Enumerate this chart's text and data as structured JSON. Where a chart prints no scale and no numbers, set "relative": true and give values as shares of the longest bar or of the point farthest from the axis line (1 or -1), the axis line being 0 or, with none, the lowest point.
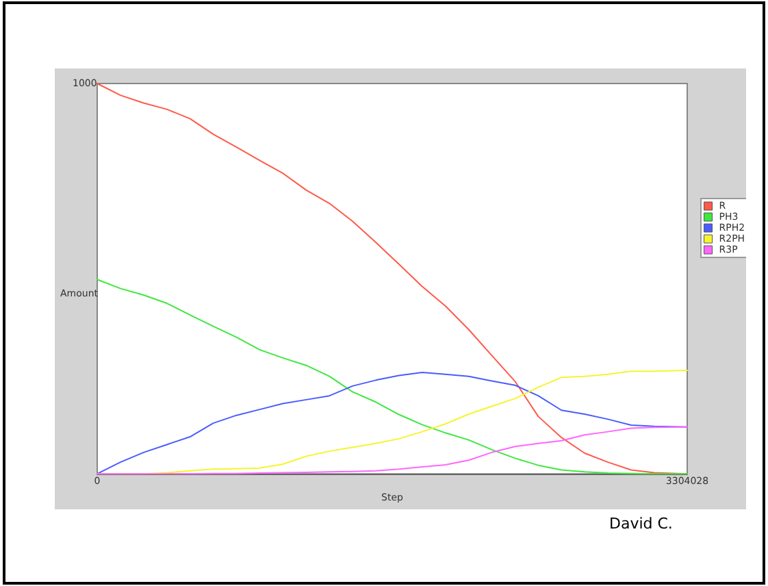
{
  "chart_data": {
    "type": "line",
    "x": [
      0,
      130000,
      260000,
      390000,
      520000,
      650000,
      780000,
      910000,
      1040000,
      1170000,
      1300000,
      1430000,
      1560000,
      1690000,
      1820000,
      1950000,
      2080000,
      2210000,
      2340000,
      2470000,
      2600000,
      2730000,
      2860000,
      2990000,
      3120000,
      3304028
    ],
    "series": [
      {
        "name": "R",
        "color": "#ff5a4a",
        "values": [
          1,
          0.97,
          0.95,
          0.934,
          0.91,
          0.87,
          0.837,
          0.803,
          0.77,
          0.727,
          0.693,
          0.647,
          0.593,
          0.537,
          0.48,
          0.43,
          0.37,
          0.303,
          0.237,
          0.147,
          0.093,
          0.053,
          0.03,
          0.01,
          0.003,
          0
        ]
      },
      {
        "name": "PH3",
        "color": "#3ee83e",
        "values": [
          0.498,
          0.475,
          0.458,
          0.437,
          0.407,
          0.378,
          0.35,
          0.318,
          0.297,
          0.278,
          0.25,
          0.21,
          0.184,
          0.152,
          0.126,
          0.105,
          0.087,
          0.062,
          0.04,
          0.022,
          0.01,
          0.005,
          0.002,
          0.001,
          0,
          0
        ]
      },
      {
        "name": "RPH2",
        "color": "#4a5cff",
        "values": [
          0,
          0.03,
          0.055,
          0.075,
          0.095,
          0.13,
          0.15,
          0.165,
          0.18,
          0.19,
          0.2,
          0.225,
          0.24,
          0.252,
          0.26,
          0.255,
          0.25,
          0.238,
          0.227,
          0.2,
          0.163,
          0.153,
          0.14,
          0.125,
          0.122,
          0.12
        ]
      },
      {
        "name": "R2PH",
        "color": "#f5f530",
        "values": [
          0,
          0,
          0,
          0.003,
          0.008,
          0.012,
          0.013,
          0.015,
          0.025,
          0.045,
          0.058,
          0.068,
          0.078,
          0.09,
          0.108,
          0.128,
          0.153,
          0.173,
          0.193,
          0.222,
          0.247,
          0.25,
          0.255,
          0.263,
          0.263,
          0.265
        ]
      },
      {
        "name": "R3P",
        "color": "#ff66ff",
        "values": [
          0,
          0,
          0,
          0,
          0,
          0.001,
          0.001,
          0.002,
          0.003,
          0.004,
          0.005,
          0.006,
          0.008,
          0.012,
          0.018,
          0.023,
          0.035,
          0.055,
          0.07,
          0.078,
          0.085,
          0.1,
          0.108,
          0.117,
          0.119,
          0.12
        ]
      }
    ],
    "relative": true,
    "xlabel": "Step",
    "ylabel": "Amount",
    "xlim": [
      0,
      3304028
    ],
    "xticks": [
      0,
      3304028
    ],
    "grid": false,
    "legend": "right",
    "marker": "none",
    "line_style": "solid",
    "annotations": [
      "1000",
      "David C."
    ]
  }
}
